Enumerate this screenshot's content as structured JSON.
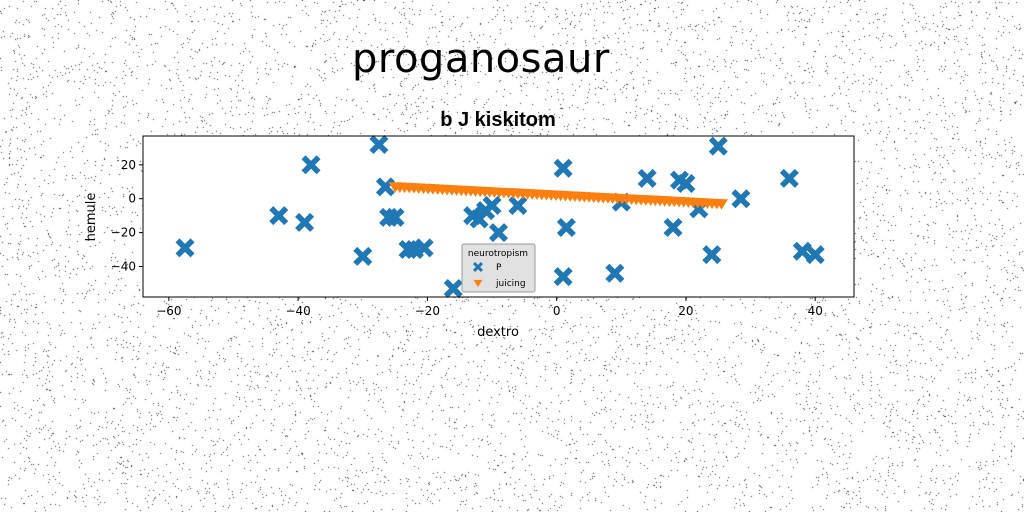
{
  "page_title": "proganosaur",
  "chart_data": {
    "type": "scatter",
    "title": "b J kiskitom",
    "xlabel": "dextro",
    "ylabel": "hemule",
    "xlim": [
      -64,
      46
    ],
    "ylim": [
      -58,
      37
    ],
    "xticks": [
      -60,
      -40,
      -20,
      0,
      20,
      40
    ],
    "yticks": [
      -40,
      -20,
      0,
      20
    ],
    "grid": false,
    "legend": {
      "title": "neurotropism",
      "placement": "lower-center"
    },
    "series": [
      {
        "name": "P",
        "marker": "X",
        "color": "#1f77b4",
        "points": [
          [
            -57.5,
            -29
          ],
          [
            -43,
            -10
          ],
          [
            -39,
            -14
          ],
          [
            -38,
            20
          ],
          [
            -30,
            -34
          ],
          [
            -27.5,
            32
          ],
          [
            -26.5,
            7
          ],
          [
            -26,
            -11
          ],
          [
            -25,
            -11
          ],
          [
            -23,
            -30
          ],
          [
            -22,
            -30
          ],
          [
            -20.5,
            -29
          ],
          [
            -16,
            -53
          ],
          [
            -13,
            -10
          ],
          [
            -12,
            -12
          ],
          [
            -11,
            -7
          ],
          [
            -10,
            -4
          ],
          [
            -9,
            -20
          ],
          [
            -6,
            -4
          ],
          [
            1,
            18
          ],
          [
            1,
            -46
          ],
          [
            1.5,
            -17
          ],
          [
            9,
            -44
          ],
          [
            10,
            -2
          ],
          [
            14,
            12
          ],
          [
            18,
            -17
          ],
          [
            19,
            11
          ],
          [
            20,
            9
          ],
          [
            22,
            -6
          ],
          [
            24,
            -33
          ],
          [
            25,
            31
          ],
          [
            28.5,
            0
          ],
          [
            36,
            12
          ],
          [
            38,
            -31
          ],
          [
            40,
            -33
          ]
        ]
      },
      {
        "name": "juicing",
        "marker": "v",
        "color": "#ff7f0e",
        "line": {
          "x_start": -25,
          "x_end": 25.5,
          "y_start": 7,
          "y_end": -3,
          "count": 70
        }
      }
    ]
  }
}
